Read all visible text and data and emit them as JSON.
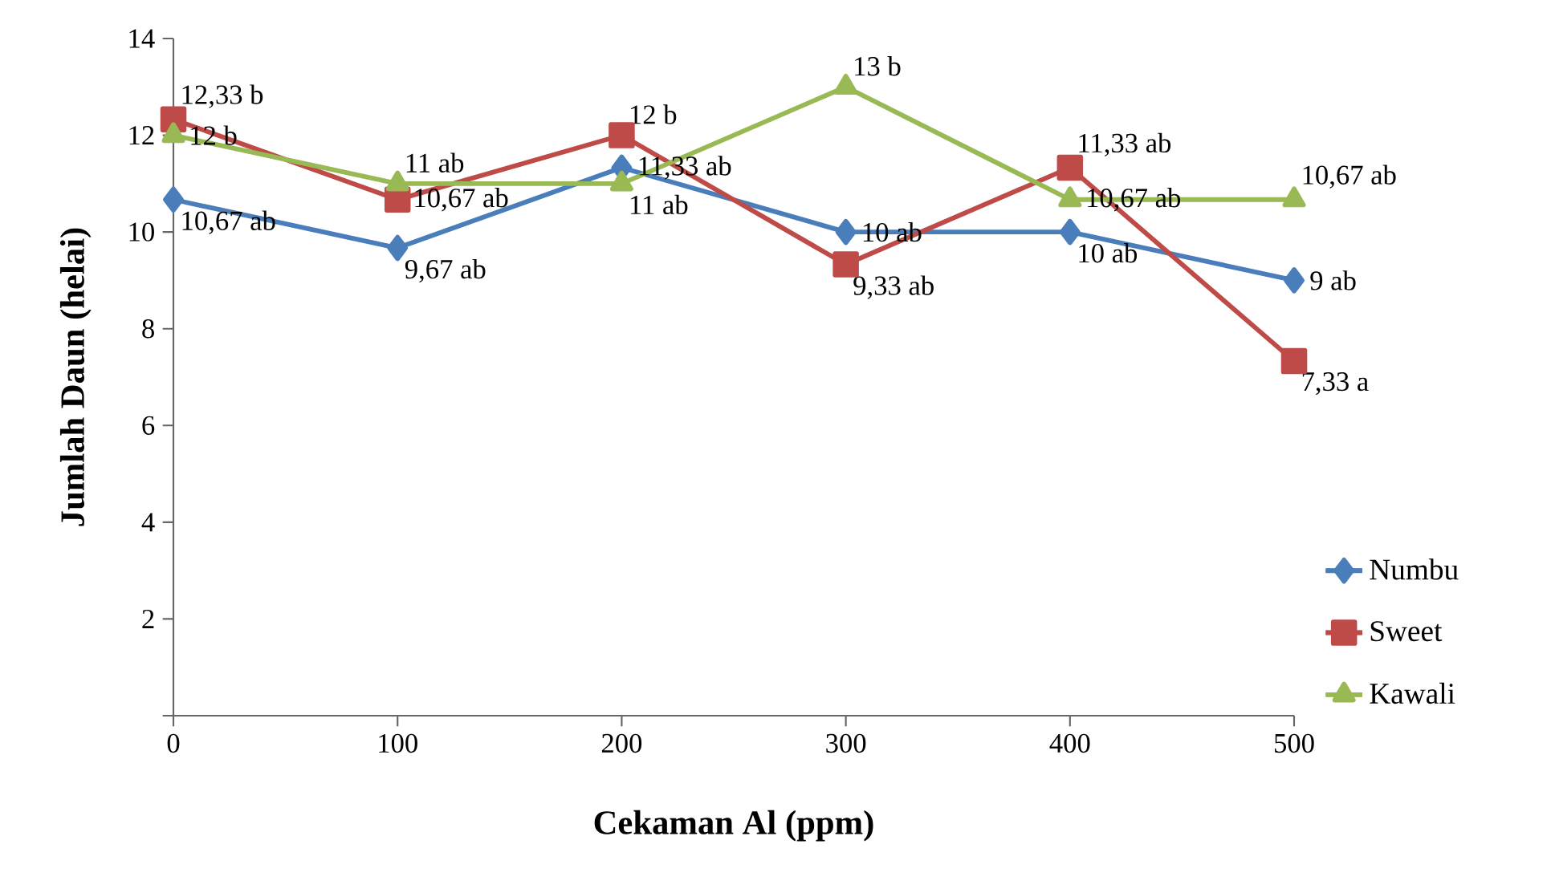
{
  "chart_data": {
    "type": "line",
    "xlabel": "Cekaman Al (ppm)",
    "ylabel": "Jumlah Daun (helai)",
    "x": [
      0,
      100,
      200,
      300,
      400,
      500
    ],
    "xlim": [
      0,
      500
    ],
    "xticks": [
      0,
      100,
      200,
      300,
      400,
      500
    ],
    "ylim": [
      0,
      14
    ],
    "yticks": [
      {
        "value": 0,
        "label": null
      },
      2,
      4,
      6,
      8,
      10,
      12,
      14
    ],
    "legend": "right",
    "series": [
      {
        "name": "Numbu",
        "color": "#4a7ebb",
        "marker": "diamond",
        "values": [
          10.67,
          9.67,
          11.33,
          10,
          10,
          9
        ],
        "value_labels": [
          "10,67 ab",
          "9,67 ab",
          "11,33 ab",
          "10 ab",
          "10 ab",
          "9 ab"
        ]
      },
      {
        "name": "Sweet",
        "color": "#be4b48",
        "marker": "square",
        "values": [
          12.33,
          10.67,
          12,
          9.33,
          11.33,
          7.33
        ],
        "value_labels": [
          "12,33 b",
          "10,67 ab",
          "12 b",
          "9,33 ab",
          "11,33 ab",
          "7,33 a"
        ]
      },
      {
        "name": "Kawali",
        "color": "#98b954",
        "marker": "triangle",
        "values": [
          12,
          11,
          11,
          13,
          10.67,
          10.67
        ],
        "value_labels": [
          "12 b",
          "11 ab",
          "11 ab",
          "13 b",
          "10,67 ab",
          "10,67 ab"
        ]
      }
    ]
  }
}
